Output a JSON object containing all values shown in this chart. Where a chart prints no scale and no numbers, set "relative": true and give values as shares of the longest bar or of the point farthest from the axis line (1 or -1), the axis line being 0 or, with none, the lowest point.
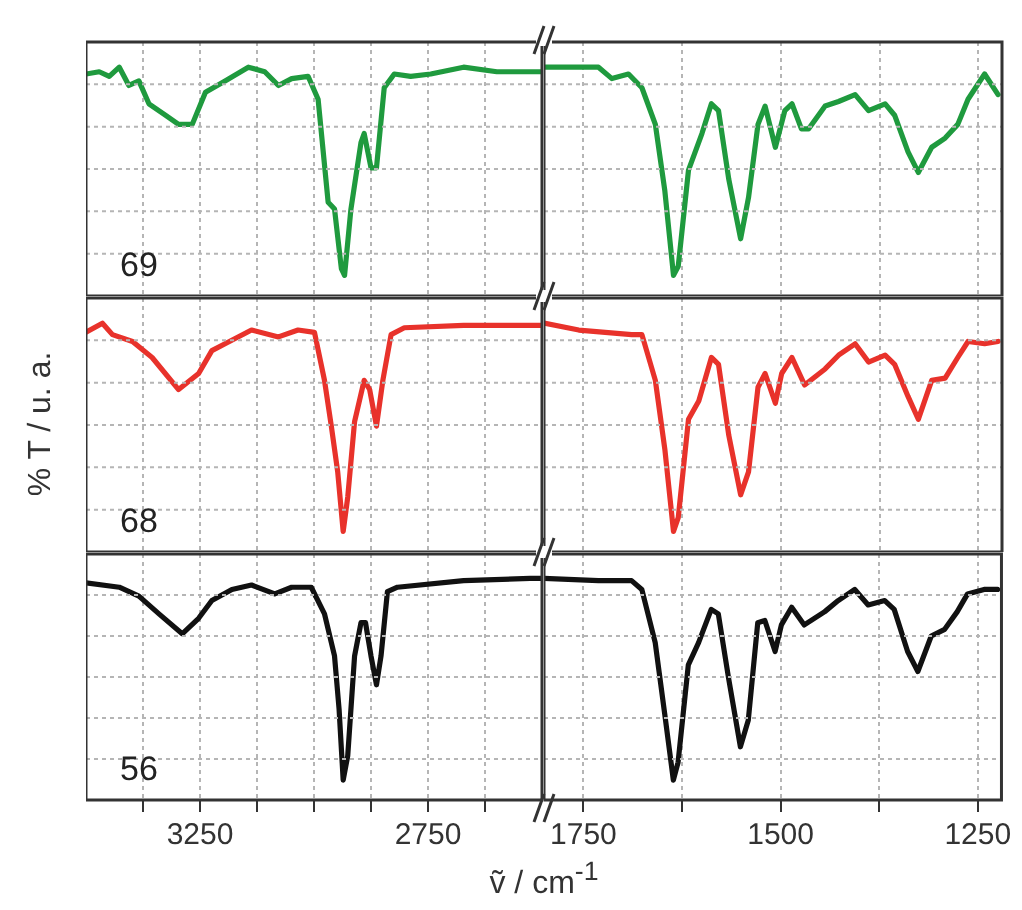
{
  "chart_data": [
    {
      "type": "line",
      "relative": true,
      "xlim": [
        3500,
        2500
      ],
      "xticks": [
        {
          "value": 3375,
          "label": null
        },
        3250,
        {
          "value": 3125,
          "label": null
        },
        {
          "value": 3000,
          "label": null
        },
        {
          "value": 2875,
          "label": null
        },
        2750,
        {
          "value": 2625,
          "label": null
        }
      ],
      "grid": true,
      "tick_labels": false,
      "marker": "none",
      "annotations": [
        "69"
      ],
      "x": [
        3500,
        3471,
        3449,
        3427,
        3406,
        3384,
        3362,
        3326,
        3297,
        3267,
        3238,
        3195,
        3144,
        3108,
        3078,
        3049,
        3013,
        2991,
        2969,
        2955,
        2940,
        2933,
        2919,
        2897,
        2890,
        2875,
        2863,
        2846,
        2824,
        2788,
        2744,
        2672,
        2599,
        2526,
        2500
      ],
      "series": [
        {
          "color": "#1f9a3e",
          "values": [
            0.97,
            0.98,
            0.96,
            1,
            0.92,
            0.94,
            0.84,
            0.79,
            0.75,
            0.75,
            0.89,
            0.94,
            1,
            0.98,
            0.92,
            0.95,
            0.96,
            0.86,
            0.41,
            0.38,
            0.12,
            0.09,
            0.38,
            0.67,
            0.71,
            0.56,
            0.56,
            0.91,
            0.97,
            0.96,
            0.97,
            1,
            0.98,
            0.98,
            0.98
          ]
        }
      ]
    },
    {
      "type": "line",
      "relative": true,
      "xlim": [
        1800,
        1220
      ],
      "xticks": [
        1750,
        {
          "value": 1625,
          "label": null
        },
        1500,
        {
          "value": 1375,
          "label": null
        },
        1250
      ],
      "grid": true,
      "tick_labels": false,
      "marker": "none",
      "x": [
        1800,
        1773,
        1731,
        1714,
        1693,
        1676,
        1659,
        1647,
        1636,
        1630,
        1617,
        1600,
        1588,
        1579,
        1566,
        1551,
        1541,
        1529,
        1520,
        1507,
        1495,
        1486,
        1474,
        1465,
        1444,
        1427,
        1406,
        1389,
        1368,
        1356,
        1339,
        1326,
        1309,
        1292,
        1276,
        1263,
        1242,
        1225
      ],
      "series": [
        {
          "color": "#1f9a3e",
          "values": [
            1,
            1,
            1,
            0.95,
            0.97,
            0.91,
            0.75,
            0.46,
            0.09,
            0.13,
            0.55,
            0.71,
            0.84,
            0.81,
            0.51,
            0.25,
            0.43,
            0.75,
            0.83,
            0.65,
            0.81,
            0.84,
            0.73,
            0.73,
            0.83,
            0.85,
            0.88,
            0.81,
            0.84,
            0.79,
            0.63,
            0.54,
            0.65,
            0.69,
            0.75,
            0.86,
            0.97,
            0.88
          ]
        }
      ]
    },
    {
      "type": "line",
      "relative": true,
      "xlim": [
        3500,
        2500
      ],
      "xticks": [
        {
          "value": 3375,
          "label": null
        },
        3250,
        {
          "value": 3125,
          "label": null
        },
        {
          "value": 3000,
          "label": null
        },
        {
          "value": 2875,
          "label": null
        },
        2750,
        {
          "value": 2625,
          "label": null
        }
      ],
      "grid": true,
      "tick_labels": false,
      "marker": "none",
      "ylabel": "% T / u. a.",
      "annotations": [
        "68"
      ],
      "x": [
        3500,
        3464,
        3442,
        3398,
        3355,
        3297,
        3253,
        3224,
        3195,
        3137,
        3078,
        3035,
        2999,
        2977,
        2962,
        2948,
        2936,
        2926,
        2911,
        2890,
        2878,
        2863,
        2849,
        2831,
        2802,
        2672,
        2526,
        2500
      ],
      "series": [
        {
          "color": "#e8322b",
          "values": [
            0.96,
            1,
            0.95,
            0.92,
            0.85,
            0.71,
            0.78,
            0.88,
            0.91,
            0.97,
            0.94,
            0.97,
            0.96,
            0.75,
            0.55,
            0.35,
            0.09,
            0.24,
            0.57,
            0.75,
            0.71,
            0.55,
            0.75,
            0.95,
            0.98,
            0.99,
            0.99,
            0.99
          ]
        }
      ]
    },
    {
      "type": "line",
      "relative": true,
      "xlim": [
        1800,
        1220
      ],
      "xticks": [
        1750,
        {
          "value": 1625,
          "label": null
        },
        1500,
        {
          "value": 1375,
          "label": null
        },
        1250
      ],
      "grid": true,
      "tick_labels": false,
      "marker": "none",
      "x": [
        1800,
        1756,
        1689,
        1676,
        1659,
        1647,
        1636,
        1630,
        1617,
        1604,
        1588,
        1579,
        1566,
        1551,
        1541,
        1529,
        1520,
        1507,
        1499,
        1486,
        1470,
        1444,
        1427,
        1406,
        1389,
        1368,
        1356,
        1339,
        1326,
        1309,
        1292,
        1276,
        1263,
        1242,
        1225
      ],
      "series": [
        {
          "color": "#e8322b",
          "values": [
            1,
            0.97,
            0.95,
            0.95,
            0.75,
            0.45,
            0.09,
            0.15,
            0.58,
            0.66,
            0.85,
            0.82,
            0.51,
            0.25,
            0.35,
            0.72,
            0.78,
            0.65,
            0.78,
            0.85,
            0.73,
            0.8,
            0.86,
            0.91,
            0.83,
            0.86,
            0.82,
            0.68,
            0.58,
            0.75,
            0.76,
            0.85,
            0.92,
            0.91,
            0.92
          ]
        }
      ]
    },
    {
      "type": "line",
      "relative": true,
      "xlim": [
        3500,
        2500
      ],
      "xticks": [
        {
          "value": 3375,
          "label": null
        },
        3250,
        {
          "value": 3125,
          "label": null
        },
        {
          "value": 3000,
          "label": null
        },
        {
          "value": 2875,
          "label": null
        },
        2750,
        {
          "value": 2625,
          "label": null
        }
      ],
      "grid": true,
      "tick_labels": "x",
      "marker": "none",
      "xlabel": "ṽ / cm$^{-1}$",
      "annotations": [
        "56"
      ],
      "x": [
        3500,
        3427,
        3384,
        3340,
        3289,
        3253,
        3224,
        3180,
        3137,
        3086,
        3049,
        3006,
        2977,
        2955,
        2945,
        2936,
        2926,
        2911,
        2897,
        2887,
        2875,
        2863,
        2853,
        2839,
        2817,
        2672,
        2526,
        2500
      ],
      "series": [
        {
          "color": "#111111",
          "values": [
            0.98,
            0.96,
            0.92,
            0.84,
            0.75,
            0.82,
            0.9,
            0.95,
            0.97,
            0.93,
            0.96,
            0.96,
            0.84,
            0.65,
            0.41,
            0.09,
            0.2,
            0.65,
            0.8,
            0.8,
            0.65,
            0.52,
            0.65,
            0.94,
            0.96,
            0.99,
            1,
            1
          ]
        }
      ]
    },
    {
      "type": "line",
      "relative": true,
      "xlim": [
        1800,
        1220
      ],
      "xticks": [
        1750,
        {
          "value": 1625,
          "label": null
        },
        1500,
        {
          "value": 1375,
          "label": null
        },
        1250
      ],
      "grid": true,
      "tick_labels": "x",
      "marker": "none",
      "x": [
        1800,
        1731,
        1689,
        1676,
        1659,
        1647,
        1636,
        1630,
        1617,
        1604,
        1588,
        1579,
        1566,
        1551,
        1541,
        1529,
        1520,
        1507,
        1499,
        1486,
        1470,
        1444,
        1427,
        1406,
        1389,
        1368,
        1356,
        1339,
        1326,
        1309,
        1292,
        1276,
        1263,
        1242,
        1225
      ],
      "series": [
        {
          "color": "#111111",
          "values": [
            1,
            0.99,
            0.99,
            0.95,
            0.71,
            0.39,
            0.09,
            0.17,
            0.61,
            0.71,
            0.86,
            0.84,
            0.55,
            0.24,
            0.36,
            0.8,
            0.81,
            0.67,
            0.79,
            0.87,
            0.79,
            0.85,
            0.9,
            0.95,
            0.88,
            0.9,
            0.86,
            0.67,
            0.58,
            0.74,
            0.77,
            0.85,
            0.93,
            0.95,
            0.95
          ]
        }
      ]
    }
  ]
}
